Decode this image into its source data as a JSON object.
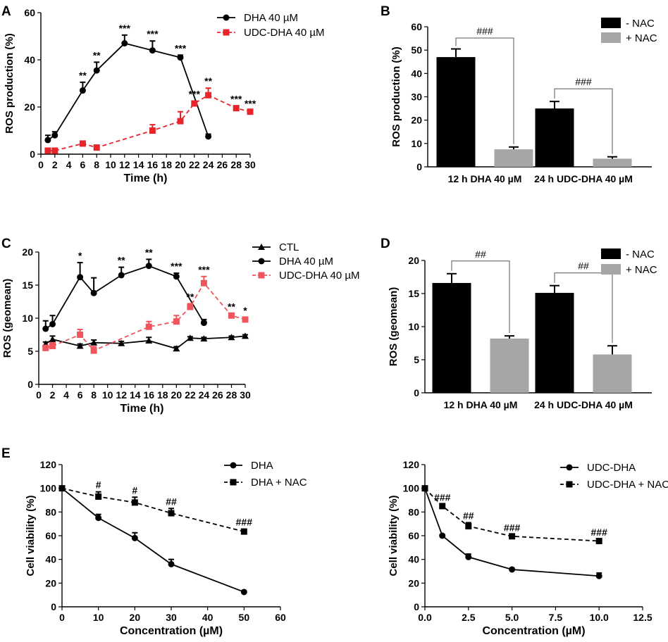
{
  "colors": {
    "black": "#000000",
    "red": "#e8242b",
    "lightred": "#f0545c",
    "gray": "#a6a6a8"
  },
  "chart_data": [
    {
      "panel": "A",
      "type": "line",
      "xlabel": "Time (h)",
      "ylabel": "ROS production (%)",
      "xlim": [
        0,
        30
      ],
      "ylim": [
        0,
        60
      ],
      "xticks": [
        0,
        2,
        4,
        6,
        8,
        10,
        12,
        14,
        16,
        18,
        20,
        22,
        24,
        26,
        28,
        30
      ],
      "yticks": [
        0,
        20,
        40,
        60
      ],
      "legend_position": "top-right",
      "series": [
        {
          "name": "DHA 40 µM",
          "marker": "circle",
          "color": "#000000",
          "dash": false,
          "x": [
            1,
            2,
            6,
            8,
            12,
            16,
            20,
            24
          ],
          "y": [
            6,
            8,
            27,
            35.5,
            47,
            44,
            41,
            7.5
          ],
          "err": [
            2,
            1.5,
            3.5,
            3.5,
            3.5,
            4,
            1,
            1
          ],
          "labels": [
            "",
            "",
            "**",
            "**",
            "***",
            "***",
            "***",
            ""
          ]
        },
        {
          "name": "UDC-DHA 40 µM",
          "marker": "square",
          "color": "#e8242b",
          "dash": true,
          "x": [
            1,
            2,
            6,
            8,
            16,
            20,
            22,
            24,
            28,
            30
          ],
          "y": [
            1.5,
            1.5,
            4.5,
            2.8,
            10,
            14,
            21.5,
            25,
            19.5,
            18
          ],
          "err": [
            0.5,
            0.5,
            0.5,
            0.5,
            2.5,
            4,
            1,
            3,
            1,
            0.5
          ],
          "labels": [
            "",
            "",
            "",
            "",
            "",
            "",
            "***",
            "**",
            "***",
            "***"
          ]
        }
      ]
    },
    {
      "panel": "B",
      "type": "bar",
      "ylabel": "ROS production (%)",
      "ylim": [
        0,
        60
      ],
      "yticks": [
        0,
        10,
        20,
        30,
        40,
        50,
        60
      ],
      "categories": [
        "12 h DHA 40 µM",
        "24 h UDC-DHA 40 µM"
      ],
      "legend_position": "top-right",
      "series": [
        {
          "name": "- NAC",
          "color": "#000000",
          "values": [
            47,
            25
          ],
          "err": [
            3.5,
            3
          ]
        },
        {
          "name": "+ NAC",
          "color": "#a6a6a8",
          "values": [
            7.5,
            3.5
          ],
          "err": [
            1,
            0.8
          ]
        }
      ],
      "annotations": [
        "###",
        "###"
      ]
    },
    {
      "panel": "C",
      "type": "line",
      "xlabel": "Time (h)",
      "ylabel": "ROS (geomean)",
      "xlim": [
        0,
        30
      ],
      "ylim": [
        0,
        20
      ],
      "xticks": [
        0,
        2,
        4,
        6,
        8,
        10,
        12,
        14,
        16,
        18,
        20,
        22,
        24,
        26,
        28,
        30
      ],
      "yticks": [
        0,
        5,
        10,
        15,
        20
      ],
      "legend_position": "top-right",
      "series": [
        {
          "name": "CTL",
          "marker": "triangle",
          "color": "#000000",
          "dash": false,
          "x": [
            1,
            2,
            6,
            8,
            12,
            16,
            20,
            22,
            24,
            28,
            30
          ],
          "y": [
            6.1,
            6.8,
            5.8,
            6.3,
            6.2,
            6.6,
            5.4,
            7,
            6.9,
            7.1,
            7.3
          ],
          "err": [
            0.3,
            0.5,
            0.3,
            0.4,
            0.3,
            0.5,
            0.3,
            0.2,
            0.2,
            0.2,
            0.2
          ],
          "labels": [
            "",
            "",
            "",
            "",
            "",
            "",
            "",
            "",
            "",
            "",
            ""
          ]
        },
        {
          "name": "DHA 40 µM",
          "marker": "circle",
          "color": "#000000",
          "dash": false,
          "x": [
            1,
            2,
            6,
            8,
            12,
            16,
            20,
            24
          ],
          "y": [
            8.4,
            9.1,
            16.2,
            13.8,
            16.5,
            17.9,
            16.3,
            9.3
          ],
          "err": [
            1.2,
            1.3,
            2.2,
            2.3,
            1.2,
            1,
            0.5,
            0.5
          ],
          "labels": [
            "",
            "",
            "*",
            "",
            "**",
            "**",
            "***",
            ""
          ]
        },
        {
          "name": "UDC-DHA 40 µM",
          "marker": "square",
          "color": "#f0545c",
          "dash": true,
          "x": [
            1,
            2,
            6,
            8,
            16,
            20,
            22,
            24,
            28,
            30
          ],
          "y": [
            5.5,
            5.8,
            7.5,
            5.1,
            8.7,
            9.5,
            11.7,
            15.3,
            10.4,
            9.8
          ],
          "err": [
            0.4,
            0.5,
            0.8,
            0.6,
            0.8,
            0.9,
            0.5,
            1,
            0.3,
            0.3
          ],
          "labels": [
            "",
            "",
            "",
            "",
            "",
            "",
            "**",
            "***",
            "**",
            "*"
          ]
        }
      ]
    },
    {
      "panel": "D",
      "type": "bar",
      "ylabel": "ROS (geomean)",
      "ylim": [
        0,
        20
      ],
      "yticks": [
        0,
        5,
        10,
        15,
        20
      ],
      "categories": [
        "12 h DHA 40 µM",
        "24 h UDC-DHA 40 µM"
      ],
      "legend_position": "top-right",
      "series": [
        {
          "name": "- NAC",
          "color": "#000000",
          "values": [
            16.6,
            15.1
          ],
          "err": [
            1.4,
            1.1
          ]
        },
        {
          "name": "+ NAC",
          "color": "#a6a6a8",
          "values": [
            8.2,
            5.8
          ],
          "err": [
            0.4,
            1.3
          ]
        }
      ],
      "annotations": [
        "##",
        "##"
      ]
    },
    {
      "panel": "E",
      "type": "line",
      "xlabel": "Concentration (µM)",
      "ylabel": "Cell viability (%)",
      "xlim": [
        0,
        60
      ],
      "ylim": [
        0,
        120
      ],
      "xticks": [
        0,
        10,
        20,
        30,
        40,
        50,
        60
      ],
      "yticks": [
        0,
        20,
        40,
        60,
        80,
        100,
        120
      ],
      "legend_position": "top-right",
      "series": [
        {
          "name": "DHA",
          "marker": "circle",
          "color": "#000000",
          "dash": false,
          "x": [
            0,
            10,
            20,
            30,
            50
          ],
          "y": [
            100,
            75,
            58,
            36,
            12.5
          ],
          "err": [
            0,
            3,
            4.5,
            4,
            0.5
          ],
          "labels": [
            "",
            "",
            "",
            "",
            ""
          ]
        },
        {
          "name": "DHA + NAC",
          "marker": "square",
          "color": "#000000",
          "dash": true,
          "x": [
            0,
            10,
            20,
            30,
            50
          ],
          "y": [
            100,
            93,
            88,
            79,
            63.5
          ],
          "err": [
            0,
            4,
            4.5,
            4,
            2
          ],
          "labels": [
            "",
            "#",
            "#",
            "##",
            "###"
          ]
        }
      ]
    },
    {
      "panel": "",
      "type": "line",
      "xlabel": "Concentration (µM)",
      "ylabel": "Cell viability (%)",
      "xlim": [
        0,
        12.5
      ],
      "ylim": [
        0,
        120
      ],
      "xticks": [
        0,
        2.5,
        5,
        7.5,
        10,
        12.5
      ],
      "xtick_labels": [
        "0.0",
        "2.5",
        "5.0",
        "7.5",
        "10.0",
        "12.5"
      ],
      "yticks": [
        0,
        20,
        40,
        60,
        80,
        100,
        120
      ],
      "legend_position": "top-right",
      "series": [
        {
          "name": "UDC-DHA",
          "marker": "circle",
          "color": "#000000",
          "dash": false,
          "x": [
            0,
            1,
            2.5,
            5,
            10
          ],
          "y": [
            100,
            60,
            42,
            31.5,
            26
          ],
          "err": [
            0,
            1,
            2.5,
            1,
            2.5
          ],
          "labels": [
            "",
            "",
            "",
            "",
            ""
          ]
        },
        {
          "name": "UDC-DHA + NAC",
          "marker": "square",
          "color": "#000000",
          "dash": true,
          "x": [
            0,
            1,
            2.5,
            5,
            10
          ],
          "y": [
            100,
            85,
            68,
            59.5,
            55.5
          ],
          "err": [
            0,
            1.5,
            3,
            1.5,
            1.5
          ],
          "labels": [
            "",
            "###",
            "##",
            "###",
            "###"
          ]
        }
      ]
    }
  ]
}
